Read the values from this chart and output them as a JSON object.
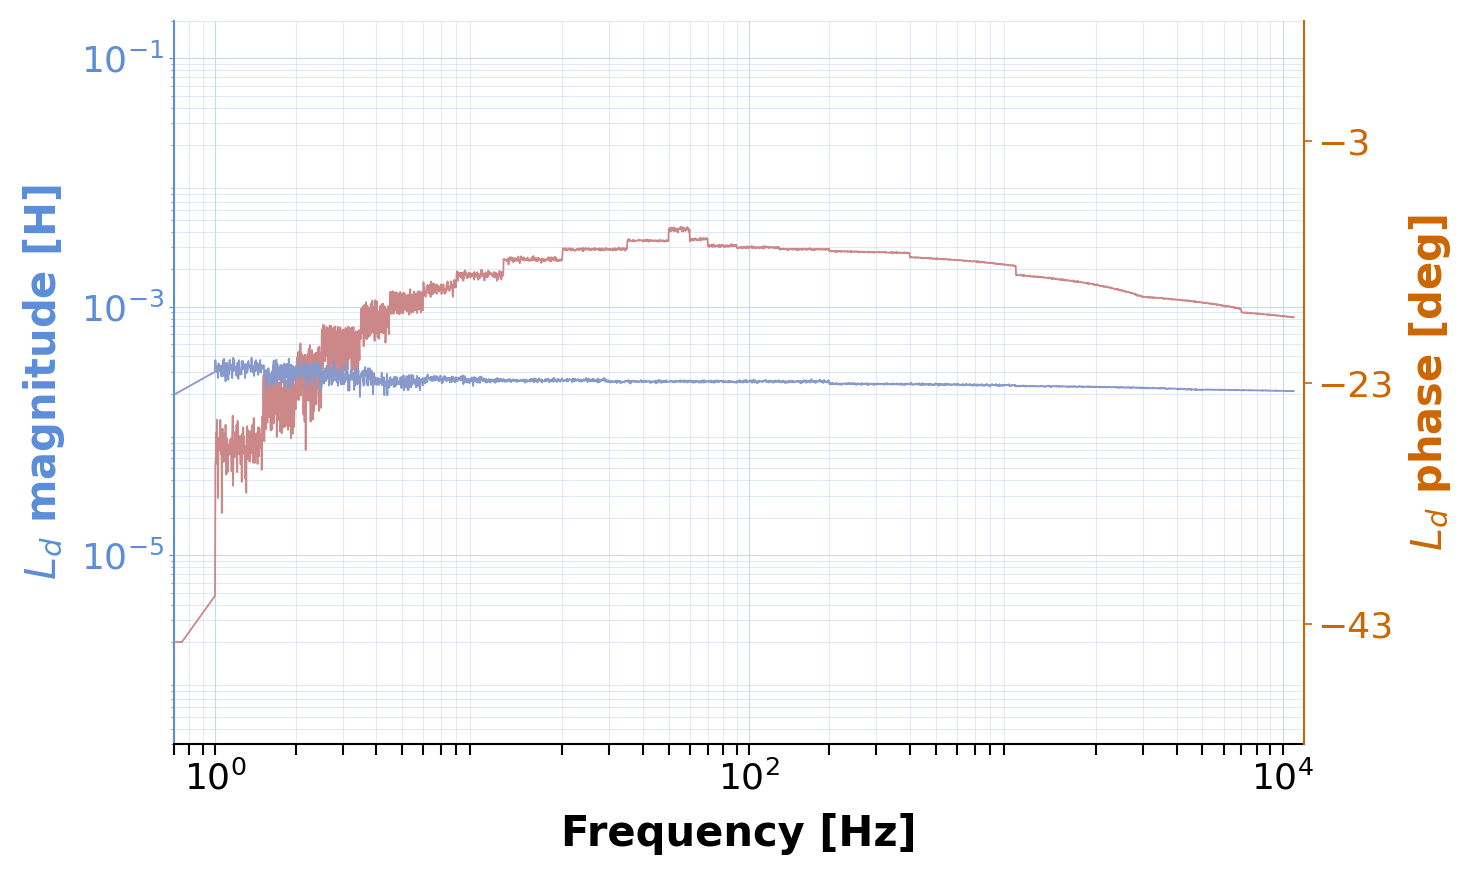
{
  "xlabel": "Frequency [Hz]",
  "ylabel_left": "$L_d$ magnitude [H]",
  "ylabel_right": "$L_d$ phase [deg]",
  "left_color": "#5b8dd9",
  "right_color": "#cc6600",
  "magnitude_line_color": "#8899cc",
  "phase_line_color": "#cc8888",
  "xlim_low": 0.7,
  "xlim_high": 12000,
  "ylim_mag_low": 3e-07,
  "ylim_mag_high": 0.2,
  "ylim_phase": [
    -53,
    7
  ],
  "yticks_phase": [
    -43,
    -23,
    -3
  ],
  "yticks_mag": [
    1e-05,
    0.001,
    0.1
  ],
  "xticks": [
    1,
    100,
    10000
  ],
  "background_color": "#ffffff",
  "grid_color": "#c8d8ee",
  "font_size_label": 30,
  "font_size_tick": 26
}
